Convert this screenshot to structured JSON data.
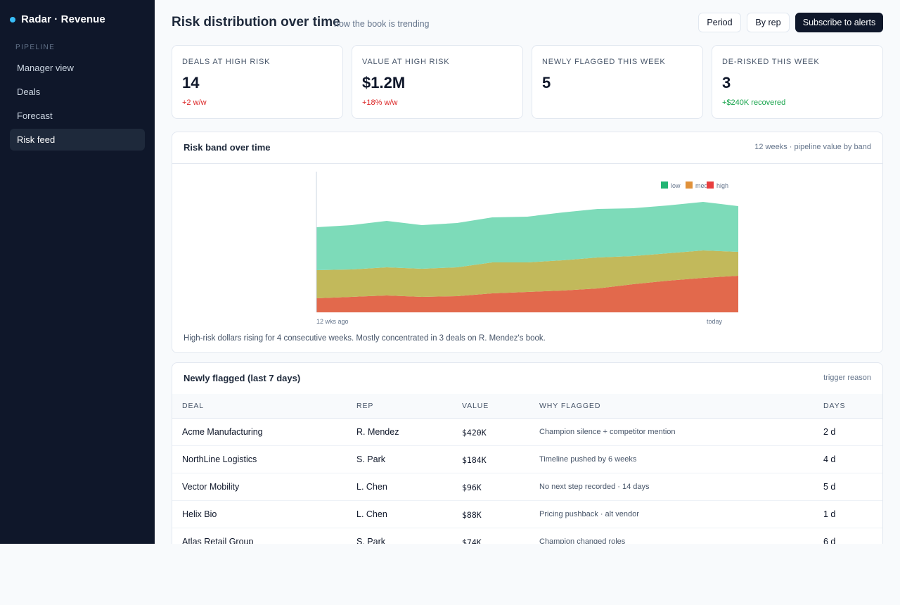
{
  "app": {
    "name": "Radar · Revenue"
  },
  "sidebar": {
    "section": "PIPELINE",
    "items": [
      {
        "label": "Manager view"
      },
      {
        "label": "Deals"
      },
      {
        "label": "Forecast"
      },
      {
        "label": "Risk feed"
      }
    ],
    "active": "Risk feed"
  },
  "header": {
    "title": "Risk distribution over time",
    "subtitle": "how the book is trending",
    "buttons": {
      "period": "Period",
      "by_rep": "By rep",
      "subscribe": "Subscribe to alerts"
    }
  },
  "kpis": [
    {
      "label": "DEALS AT HIGH RISK",
      "value": "14",
      "delta": "+2 w/w"
    },
    {
      "label": "VALUE AT HIGH RISK",
      "value": "$1.2M",
      "delta": "+18% w/w"
    },
    {
      "label": "NEWLY FLAGGED THIS WEEK",
      "value": "5",
      "delta": ""
    },
    {
      "label": "DE-RISKED THIS WEEK",
      "value": "3",
      "delta": "+$240K recovered"
    }
  ],
  "risk_chart": {
    "title": "Risk band over time",
    "meta": "12 weeks · pipeline value by band",
    "footnote": "High-risk dollars rising for 4 consecutive weeks. Mostly concentrated in 3 deals on R. Mendez's book.",
    "colors": {
      "low": "#7ddbb9",
      "med": "#c2b95b",
      "high": "#e2694c"
    }
  },
  "chart_data": {
    "type": "area",
    "stacked": true,
    "x_labels_shown": [
      "12 wks ago",
      "today"
    ],
    "x": [
      1,
      2,
      3,
      4,
      5,
      6,
      7,
      8,
      9,
      10,
      11,
      12,
      13
    ],
    "series": [
      {
        "name": "high",
        "values": [
          20,
          22,
          24,
          22,
          23,
          27,
          29,
          31,
          34,
          40,
          45,
          49,
          52
        ]
      },
      {
        "name": "med",
        "values": [
          40,
          39,
          40,
          40,
          41,
          44,
          42,
          43,
          44,
          40,
          39,
          39,
          34
        ]
      },
      {
        "name": "low",
        "values": [
          61,
          63,
          66,
          62,
          63,
          64,
          65,
          68,
          69,
          68,
          68,
          69,
          65
        ]
      }
    ],
    "legend": [
      "low",
      "med",
      "high"
    ],
    "legend_position": "top-right",
    "ylim": [
      0,
      200
    ],
    "grid": false
  },
  "flagged": {
    "title": "Newly flagged (last 7 days)",
    "meta": "trigger reason",
    "columns": [
      "DEAL",
      "REP",
      "VALUE",
      "WHY FLAGGED",
      "DAYS"
    ],
    "rows": [
      [
        "Acme Manufacturing",
        "R. Mendez",
        "$420K",
        "Champion silence + competitor mention",
        "2 d"
      ],
      [
        "NorthLine Logistics",
        "S. Park",
        "$184K",
        "Timeline pushed by 6 weeks",
        "4 d"
      ],
      [
        "Vector Mobility",
        "L. Chen",
        "$96K",
        "No next step recorded · 14 days",
        "5 d"
      ],
      [
        "Helix Bio",
        "L. Chen",
        "$88K",
        "Pricing pushback · alt vendor",
        "1 d"
      ],
      [
        "Atlas Retail Group",
        "S. Park",
        "$74K",
        "Champion changed roles",
        "6 d"
      ]
    ]
  }
}
